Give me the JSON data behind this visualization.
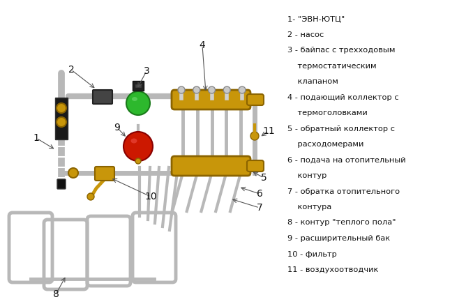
{
  "bg_color": "#ffffff",
  "pipe_color": "#b8b8b8",
  "collector_color": "#c8960a",
  "green_color": "#2db82d",
  "red_color": "#cc1800",
  "black_color": "#222222",
  "gold_color": "#c8960a",
  "dark_gold": "#8B6400",
  "label_color": "#111111",
  "legend_lines": [
    "1- \"ЭВН-ЮТЦ\"",
    "2 - насос",
    "3 - байпас с трехходовым",
    "    термостатическим",
    "    клапаном",
    "4 - подающий коллектор с",
    "    термоголовками",
    "5 - обратный коллектор с",
    "    расходомерами",
    "6 - подача на отопительный",
    "    контур",
    "7 - обратка отопительного",
    "    контура",
    "8 - контур \"теплого пола\"",
    "9 - расширительный бак",
    "10 - фильтр",
    "11 - воздухоотводчик"
  ]
}
